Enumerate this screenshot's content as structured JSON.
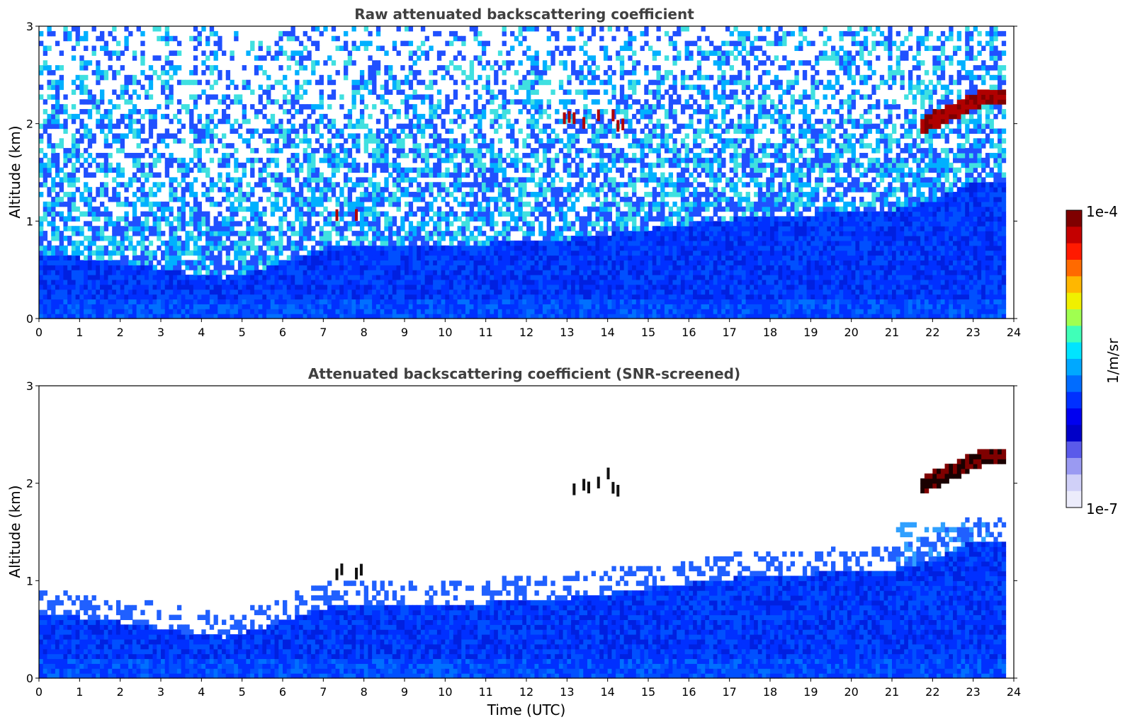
{
  "chart_data": [
    {
      "type": "heatmap",
      "title": "Raw attenuated backscattering coefficient",
      "xlabel": "",
      "ylabel": "Altitude (km)",
      "xlim": [
        0,
        24
      ],
      "ylim": [
        0,
        3
      ],
      "x_ticks": [
        "0",
        "1",
        "2",
        "3",
        "4",
        "5",
        "6",
        "7",
        "8",
        "9",
        "10",
        "11",
        "12",
        "13",
        "14",
        "15",
        "16",
        "17",
        "18",
        "19",
        "20",
        "21",
        "22",
        "23",
        "24"
      ],
      "y_ticks": [
        "0",
        "1",
        "2",
        "3"
      ],
      "colormap": "jet",
      "colorbar_range": [
        "1e-7",
        "1e-4"
      ],
      "features": {
        "aerosol_layer_top_km": [
          [
            0,
            0.65
          ],
          [
            2,
            0.55
          ],
          [
            3.5,
            0.45
          ],
          [
            4.5,
            0.4
          ],
          [
            5.5,
            0.5
          ],
          [
            7,
            0.7
          ],
          [
            9,
            0.75
          ],
          [
            11,
            0.75
          ],
          [
            13,
            0.8
          ],
          [
            15,
            0.9
          ],
          [
            17,
            1.0
          ],
          [
            19,
            1.05
          ],
          [
            21,
            1.1
          ],
          [
            22,
            1.2
          ],
          [
            23,
            1.4
          ],
          [
            23.8,
            1.4
          ]
        ],
        "cloud_layers": [
          {
            "t_start": 21.8,
            "t_end": 23.8,
            "alt_start_km": 1.9,
            "alt_end_km": 2.2,
            "intensity": "high"
          },
          {
            "t_start": 7.3,
            "t_end": 8.0,
            "alt_start_km": 1.0,
            "alt_end_km": 1.15,
            "intensity": "high"
          },
          {
            "t_start": 12.9,
            "t_end": 14.4,
            "alt_start_km": 1.85,
            "alt_end_km": 2.1,
            "intensity": "high"
          }
        ]
      }
    },
    {
      "type": "heatmap",
      "title": "Attenuated backscattering coefficient (SNR-screened)",
      "xlabel": "Time (UTC)",
      "ylabel": "Altitude (km)",
      "xlim": [
        0,
        24
      ],
      "ylim": [
        0,
        3
      ],
      "x_ticks": [
        "0",
        "1",
        "2",
        "3",
        "4",
        "5",
        "6",
        "7",
        "8",
        "9",
        "10",
        "11",
        "12",
        "13",
        "14",
        "15",
        "16",
        "17",
        "18",
        "19",
        "20",
        "21",
        "22",
        "23",
        "24"
      ],
      "y_ticks": [
        "0",
        "1",
        "2",
        "3"
      ],
      "colormap": "jet",
      "colorbar_range": [
        "1e-7",
        "1e-4"
      ]
    }
  ],
  "colorbar": {
    "label": "1/m/sr",
    "top_label": "1e-4",
    "bottom_label": "1e-7",
    "colors": [
      "#7f0000",
      "#c40000",
      "#ff1a00",
      "#ff6a00",
      "#ffb700",
      "#f0f000",
      "#a0ff50",
      "#40ffb8",
      "#00e4ff",
      "#00a8ff",
      "#006cff",
      "#0030ff",
      "#0000f0",
      "#0000c8",
      "#5a5aea",
      "#9a9af2",
      "#d0d0f8",
      "#ececfb"
    ]
  }
}
